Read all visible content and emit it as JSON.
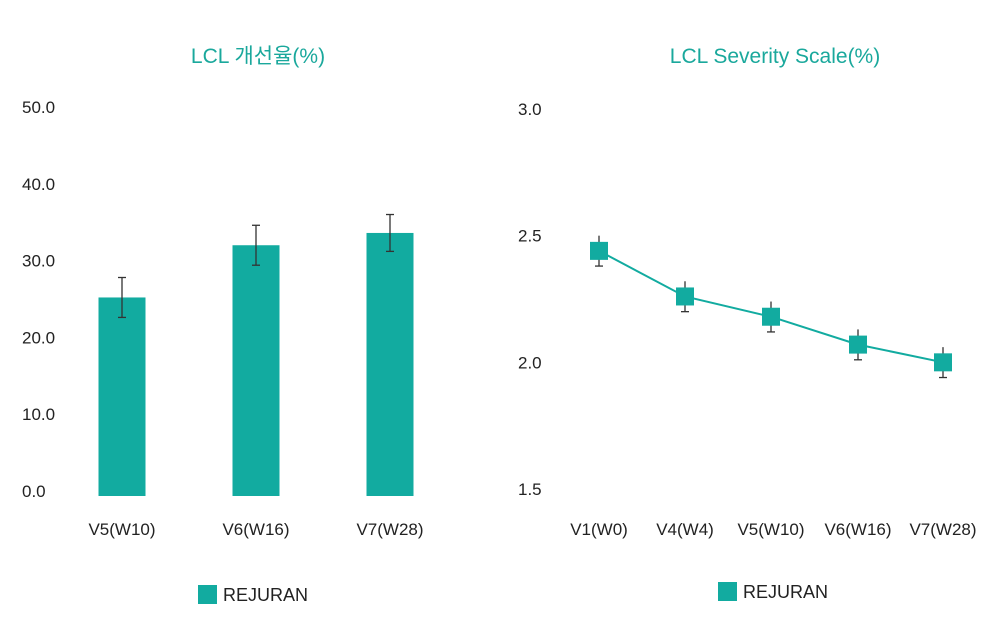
{
  "colors": {
    "accent": "#12aba0",
    "title": "#1aa89c",
    "error_bar": "#333333"
  },
  "chart_data": [
    {
      "type": "bar",
      "title": "LCL 개선율(%)",
      "categories": [
        "V5(W10)",
        "V6(W16)",
        "V7(W28)"
      ],
      "series": [
        {
          "name": "REJURAN",
          "values": [
            25.2,
            32.0,
            33.6
          ],
          "error": [
            2.6,
            2.6,
            2.4
          ]
        }
      ],
      "ylim": [
        0,
        50
      ],
      "yticks": [
        "50.0",
        "40.0",
        "30.0",
        "20.0",
        "10.0",
        "0.0"
      ],
      "grid": false,
      "legend": "bottom-center"
    },
    {
      "type": "line",
      "title": "LCL  Severity Scale(%)",
      "categories": [
        "V1(W0)",
        "V4(W4)",
        "V5(W10)",
        "V6(W16)",
        "V7(W28)"
      ],
      "series": [
        {
          "name": "REJURAN",
          "values": [
            2.44,
            2.26,
            2.18,
            2.07,
            2.0
          ],
          "error": [
            0.06,
            0.06,
            0.06,
            0.06,
            0.06
          ]
        }
      ],
      "ylim": [
        1.5,
        3.0
      ],
      "yticks": [
        "3.0",
        "2.5",
        "2.0",
        "1.5"
      ],
      "grid": false,
      "legend": "bottom-center"
    }
  ]
}
